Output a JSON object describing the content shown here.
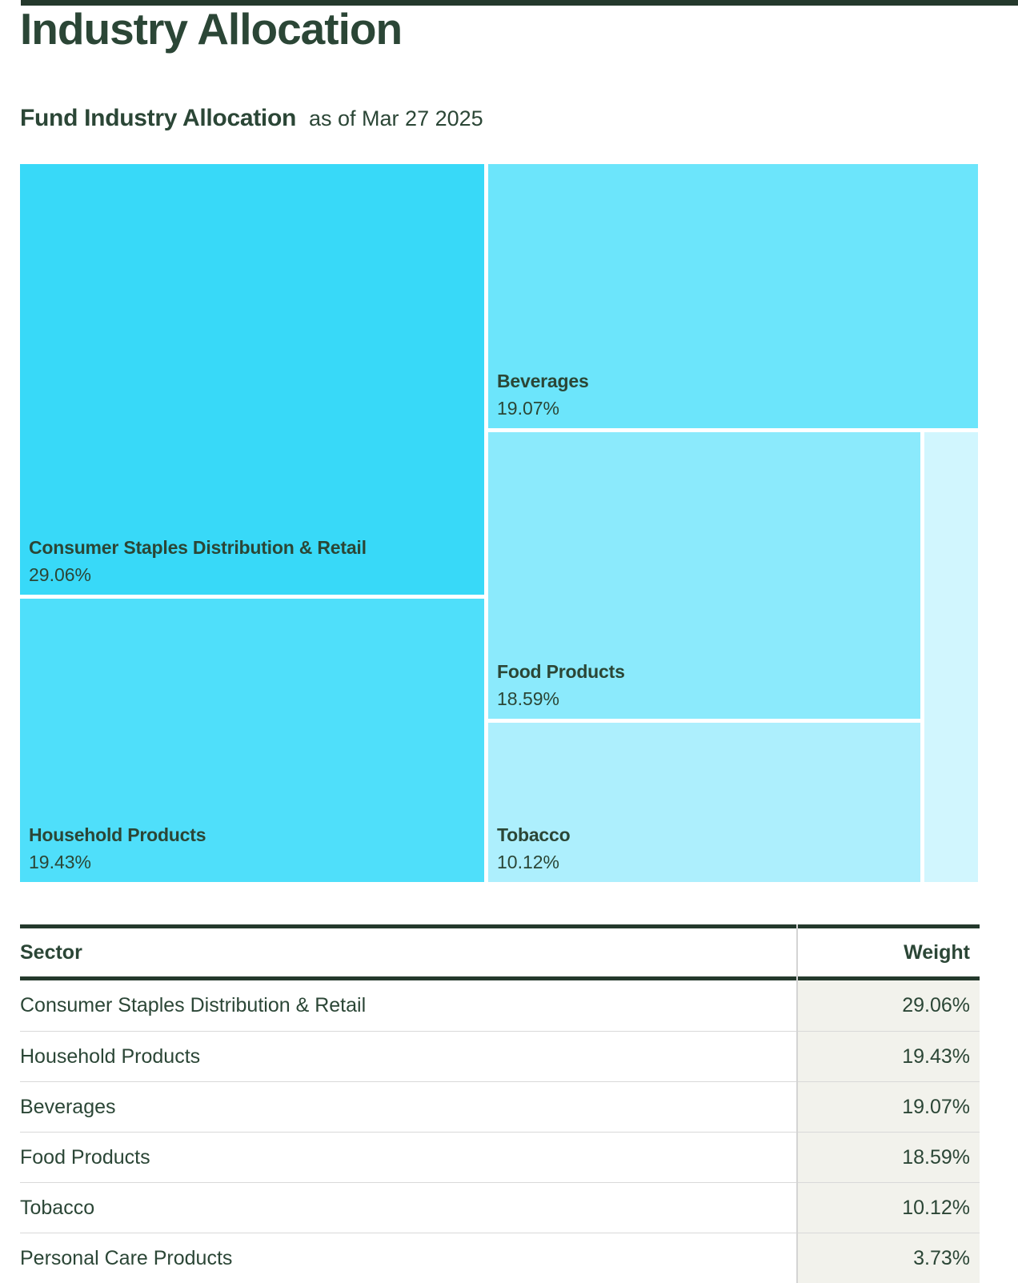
{
  "page": {
    "title": "Industry Allocation"
  },
  "section": {
    "title": "Fund Industry Allocation",
    "as_of": "as of Mar 27 2025"
  },
  "chart_data": {
    "type": "treemap",
    "title": "Fund Industry Allocation",
    "as_of_date": "Mar 27 2025",
    "value_format": "percent",
    "items": [
      {
        "label": "Consumer Staples Distribution & Retail",
        "value": 29.06,
        "display": "29.06%",
        "color": "#38d9f8"
      },
      {
        "label": "Household Products",
        "value": 19.43,
        "display": "19.43%",
        "color": "#4fdffa"
      },
      {
        "label": "Beverages",
        "value": 19.07,
        "display": "19.07%",
        "color": "#6ce5fb"
      },
      {
        "label": "Food Products",
        "value": 18.59,
        "display": "18.59%",
        "color": "#8beafc"
      },
      {
        "label": "Tobacco",
        "value": 10.12,
        "display": "10.12%",
        "color": "#adeffd"
      },
      {
        "label": "Personal Care Products",
        "value": 3.73,
        "display": "3.73%",
        "color": "#d1f6fe"
      }
    ]
  },
  "table": {
    "headers": {
      "sector": "Sector",
      "weight": "Weight"
    },
    "rows": [
      {
        "sector": "Consumer Staples Distribution & Retail",
        "weight": "29.06%"
      },
      {
        "sector": "Household Products",
        "weight": "19.43%"
      },
      {
        "sector": "Beverages",
        "weight": "19.07%"
      },
      {
        "sector": "Food Products",
        "weight": "18.59%"
      },
      {
        "sector": "Tobacco",
        "weight": "10.12%"
      },
      {
        "sector": "Personal Care Products",
        "weight": "3.73%"
      }
    ]
  },
  "colors": {
    "text_dark_green": "#2b4636",
    "rule_dark_green": "#24392c",
    "weight_cell_bg": "#f2f2ec",
    "row_divider": "#d9d9d9",
    "column_divider": "#d4d4d4"
  }
}
